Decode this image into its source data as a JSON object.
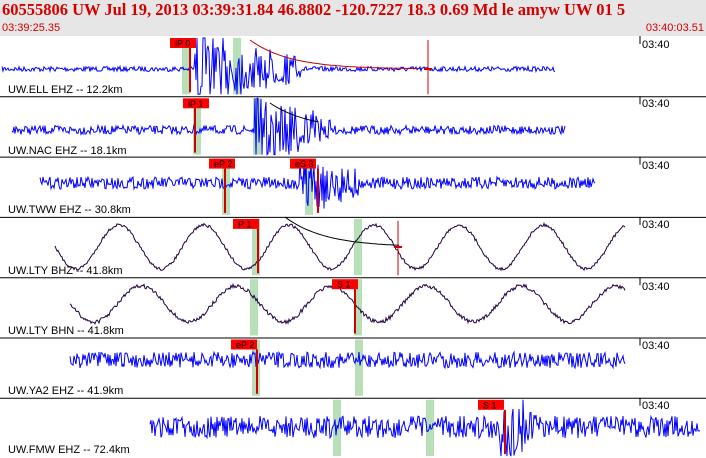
{
  "header": {
    "title": "60555806 UW Jul 19, 2013 03:39:31.84   46.8802 -120.7227 18.3 0.69 Md le amyw UW 01   5",
    "start_time": "03:39:25.35",
    "end_time": "03:40:03.51",
    "background": "#e6e6e6",
    "text_color": "#d40000"
  },
  "channels": [
    {
      "label": "UW.ELL EHZ -- 12.2km",
      "time_tick": "03:40",
      "color": "#0000ff",
      "picks": [
        {
          "label": "iP 0"
        }
      ]
    },
    {
      "label": "UW.NAC EHZ -- 18.1km",
      "time_tick": "03:40",
      "color": "#0000ff",
      "picks": [
        {
          "label": "iP 1"
        }
      ]
    },
    {
      "label": "UW.TWW EHZ -- 30.8km",
      "time_tick": "03:40",
      "color": "#0000ff",
      "picks": [
        {
          "label": "eP 2"
        },
        {
          "label": "eS 3"
        }
      ]
    },
    {
      "label": "UW.LTY BHZ -- 41.8km",
      "time_tick": "03:40",
      "color": "#200040",
      "picks": [
        {
          "label": "P 1"
        }
      ]
    },
    {
      "label": "UW.LTY BHN -- 41.8km",
      "time_tick": "03:40",
      "color": "#200040",
      "picks": [
        {
          "label": "S 1"
        }
      ]
    },
    {
      "label": "UW.YA2 EHZ -- 41.9km",
      "time_tick": "03:40",
      "color": "#0000ff",
      "picks": [
        {
          "label": "eP 2"
        }
      ]
    },
    {
      "label": "UW.FMW EHZ -- 72.4km",
      "time_tick": "03:40",
      "color": "#0000ff",
      "picks": [
        {
          "label": "S 1"
        }
      ]
    }
  ],
  "colors": {
    "pick_box": "#ff0000",
    "pick_line": "#d00000",
    "window_band": "#b8e0b8",
    "divider": "#000000"
  }
}
